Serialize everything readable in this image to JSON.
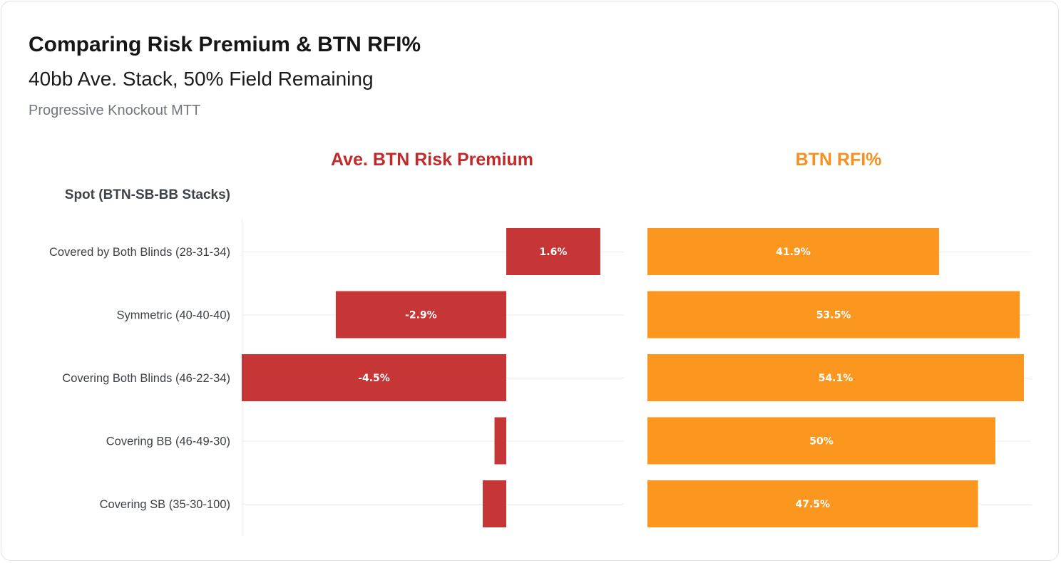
{
  "header": {
    "title": "Comparing Risk Premium & BTN RFI%",
    "subtitle": "40bb Ave. Stack, 50% Field Remaining",
    "source": "Progressive Knockout MTT"
  },
  "chart_data": {
    "type": "bar",
    "orientation": "horizontal",
    "row_header": "Spot (BTN-SB-BB Stacks)",
    "categories": [
      "Covered by Both Blinds (28-31-34)",
      "Symmetric (40-40-40)",
      "Covering Both Blinds (46-22-34)",
      "Covering BB (46-49-30)",
      "Covering SB (35-30-100)"
    ],
    "panels": [
      {
        "title": "Ave. BTN Risk Premium",
        "color": "#c73636",
        "title_color": "#c22a2a",
        "values": [
          1.6,
          -2.9,
          -4.5,
          -0.2,
          -0.4
        ],
        "labels": [
          "1.6%",
          "-2.9%",
          "-4.5%",
          "",
          ""
        ],
        "xlim": [
          -4.5,
          2
        ]
      },
      {
        "title": "BTN RFI%",
        "color": "#fb971f",
        "title_color": "#f7901e",
        "values": [
          41.9,
          53.5,
          54.1,
          50,
          47.5
        ],
        "labels": [
          "41.9%",
          "53.5%",
          "54.1%",
          "50%",
          "47.5%"
        ],
        "xlim": [
          0,
          55
        ]
      }
    ],
    "grid": true,
    "legend": "none"
  }
}
